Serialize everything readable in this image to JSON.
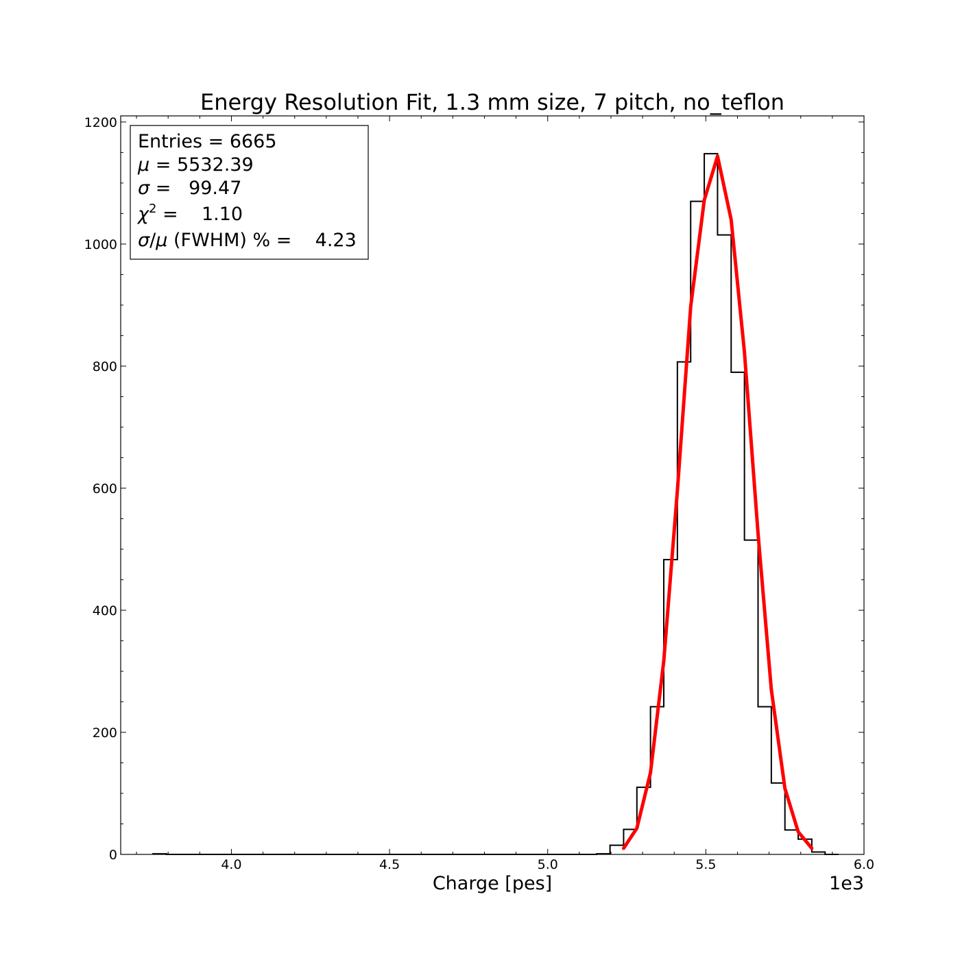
{
  "chart_data": {
    "type": "bar",
    "title": "Energy Resolution Fit, 1.3 mm size, 7 pitch, no_teflon",
    "xlabel": "Charge [pes]",
    "ylabel": "",
    "x_offset_label": "1e3",
    "xlim": [
      3650,
      6000
    ],
    "ylim": [
      0,
      1210
    ],
    "x_ticks": [
      4000,
      4500,
      5000,
      5500,
      6000
    ],
    "x_tick_labels": [
      "4.0",
      "4.5",
      "5.0",
      "5.5",
      "6.0"
    ],
    "y_ticks": [
      0,
      200,
      400,
      600,
      800,
      1000,
      1200
    ],
    "y_tick_labels": [
      "0",
      "200",
      "400",
      "600",
      "800",
      "1000",
      "1200"
    ],
    "grid": false,
    "histogram": {
      "bin_edges": [
        3752,
        3795,
        3837,
        3880,
        3922,
        3965,
        4007,
        4050,
        4092,
        4135,
        4177,
        4220,
        4262,
        4305,
        4347,
        4390,
        4432,
        4475,
        4517,
        4560,
        4602,
        4645,
        4687,
        4730,
        4772,
        4815,
        4857,
        4900,
        4942,
        4985,
        5027,
        5070,
        5112,
        5155,
        5197,
        5240,
        5282,
        5325,
        5367,
        5410,
        5452,
        5495,
        5537,
        5580,
        5622,
        5665,
        5707,
        5750,
        5792,
        5835,
        5877,
        5920
      ],
      "counts": [
        1,
        0,
        0,
        0,
        0,
        0,
        0,
        0,
        0,
        0,
        0,
        0,
        0,
        0,
        0,
        0,
        0,
        0,
        0,
        0,
        0,
        0,
        0,
        0,
        0,
        0,
        0,
        0,
        0,
        0,
        0,
        0,
        0,
        1,
        15,
        41,
        110,
        242,
        483,
        807,
        1070,
        1148,
        1015,
        790,
        515,
        242,
        117,
        40,
        25,
        4,
        0
      ]
    },
    "fit": {
      "name": "Gaussian fit",
      "color": "#ff0000",
      "mu": 5532.39,
      "sigma": 99.47,
      "x": [
        5240,
        5282,
        5325,
        5367,
        5410,
        5452,
        5495,
        5537,
        5580,
        5622,
        5665,
        5707,
        5750,
        5792,
        5835
      ],
      "y": [
        10,
        43,
        134,
        317,
        596,
        897,
        1072,
        1144,
        1040,
        823,
        526,
        270,
        108,
        37,
        10
      ]
    },
    "histogram_color": "#000000"
  },
  "stats_box": {
    "entries_label": "Entries = 6665",
    "mu_symbol": "μ",
    "mu_rest": " = 5532.39",
    "sigma_symbol": "σ",
    "sigma_rest": " =   99.47",
    "chi_symbol": "χ",
    "chi_sup": "2",
    "chi_rest": " =    1.10",
    "res_sigma": "σ",
    "res_slash": "/",
    "res_mu": "μ",
    "res_rest": " (FWHM) % =    4.23"
  }
}
